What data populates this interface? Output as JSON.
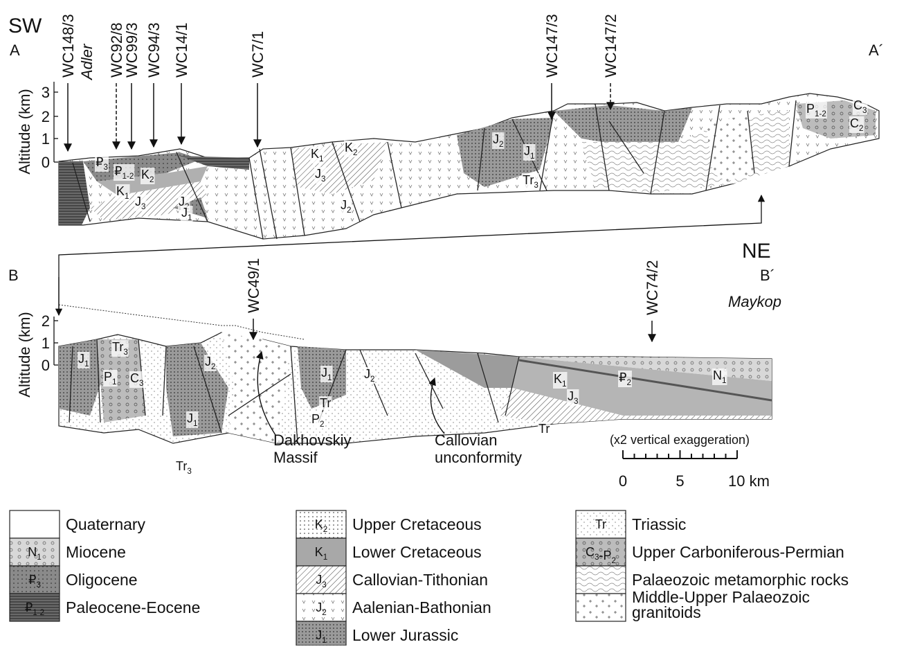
{
  "header": {
    "left_direction": "SW",
    "right_direction": "NE"
  },
  "section_a": {
    "start": "A",
    "end": "A´",
    "place": "Adler",
    "axis_label": "Altitude (km)",
    "axis_ticks": [
      "3",
      "2",
      "1",
      "0"
    ],
    "wells": [
      "WC148/3",
      "WC92/8",
      "WC99/3",
      "WC94/3",
      "WC14/1",
      "WC7/1",
      "WC147/3",
      "WC147/2"
    ],
    "units": [
      [
        {
          "text": "₽",
          "sub": "3"
        }
      ],
      [
        {
          "text": "₽",
          "sub": "1-2"
        }
      ],
      [
        {
          "text": "K",
          "sub": "2"
        }
      ],
      [
        {
          "text": "K",
          "sub": "1"
        }
      ],
      [
        {
          "text": "J",
          "sub": "3"
        }
      ],
      [
        {
          "text": "J",
          "sub": "2"
        }
      ],
      [
        {
          "text": "J",
          "sub": "1"
        }
      ],
      [
        {
          "text": "K",
          "sub": "1"
        }
      ],
      [
        {
          "text": "K",
          "sub": "2"
        }
      ],
      [
        {
          "text": "J",
          "sub": "3"
        }
      ],
      [
        {
          "text": "J",
          "sub": "2"
        }
      ],
      [
        {
          "text": "J",
          "sub": "2"
        }
      ],
      [
        {
          "text": "J",
          "sub": "1"
        }
      ],
      [
        {
          "text": "Tr",
          "sub": "3"
        }
      ],
      [
        {
          "text": "P",
          "sub": "1-2"
        }
      ],
      [
        {
          "text": "C",
          "sub": "3"
        }
      ],
      [
        {
          "text": "C",
          "sub": "2"
        }
      ]
    ]
  },
  "section_b": {
    "start": "B",
    "end": "B´",
    "place": "Maykop",
    "axis_label": "Altitude (km)",
    "axis_ticks": [
      "2",
      "1",
      "0"
    ],
    "wells": [
      "WC49/1",
      "WC74/2"
    ],
    "units": [
      [
        {
          "text": "J",
          "sub": "1"
        }
      ],
      [
        {
          "text": "Tr",
          "sub": "3"
        }
      ],
      [
        {
          "text": "P",
          "sub": "1"
        }
      ],
      [
        {
          "text": "C",
          "sub": "3"
        }
      ],
      [
        {
          "text": "J",
          "sub": "2"
        }
      ],
      [
        {
          "text": "J",
          "sub": "1"
        }
      ],
      [
        {
          "text": "Tr",
          "sub": "3"
        }
      ],
      [
        {
          "text": "J",
          "sub": "1"
        }
      ],
      [
        {
          "text": "Tr"
        }
      ],
      [
        {
          "text": "P",
          "sub": "2"
        }
      ],
      [
        {
          "text": "J",
          "sub": "2"
        }
      ],
      [
        {
          "text": "K",
          "sub": "1"
        }
      ],
      [
        {
          "text": "₽",
          "sub": "2"
        }
      ],
      [
        {
          "text": "N",
          "sub": "1"
        }
      ],
      [
        {
          "text": "J",
          "sub": "3"
        }
      ],
      [
        {
          "text": "Tr"
        }
      ]
    ]
  },
  "annotations": [
    [
      "Dakhovskiy",
      "Massif"
    ],
    [
      "Callovian",
      "unconformity"
    ]
  ],
  "scale": {
    "caption": "(x2 vertical exaggeration)",
    "ticks": [
      "0",
      "5",
      "10 km"
    ]
  },
  "legend": [
    {
      "name": [
        "Quaternary"
      ]
    },
    {
      "symbol": [
        {
          "text": "N",
          "sub": "1"
        }
      ],
      "name": [
        "Miocene"
      ]
    },
    {
      "symbol": [
        {
          "text": "₽",
          "sub": "3"
        }
      ],
      "name": [
        "Oligocene"
      ]
    },
    {
      "symbol": [
        {
          "text": "₽",
          "sub": "1-2"
        }
      ],
      "name": [
        "Paleocene-Eocene"
      ]
    },
    {
      "symbol": [
        {
          "text": "K",
          "sub": "2"
        }
      ],
      "name": [
        "Upper Cretaceous"
      ]
    },
    {
      "symbol": [
        {
          "text": "K",
          "sub": "1"
        }
      ],
      "name": [
        "Lower Cretaceous"
      ]
    },
    {
      "symbol": [
        {
          "text": "J",
          "sub": "3"
        }
      ],
      "name": [
        "Callovian-Tithonian"
      ]
    },
    {
      "symbol": [
        {
          "text": "J",
          "sub": "2"
        }
      ],
      "name": [
        "Aalenian-Bathonian"
      ]
    },
    {
      "symbol": [
        {
          "text": "J",
          "sub": "1"
        }
      ],
      "name": [
        "Lower Jurassic"
      ]
    },
    {
      "symbol": [
        {
          "text": "Tr"
        }
      ],
      "name": [
        "Triassic"
      ]
    },
    {
      "symbol": [
        {
          "text": "C",
          "sub": "3"
        },
        {
          "text": "-P",
          "sub": "2"
        }
      ],
      "name": [
        "Upper Carboniferous-Permian"
      ]
    },
    {
      "name": [
        "Palaeozoic metamorphic rocks"
      ]
    },
    {
      "name": [
        "Middle-Upper Palaeozoic",
        "granitoids"
      ]
    }
  ]
}
